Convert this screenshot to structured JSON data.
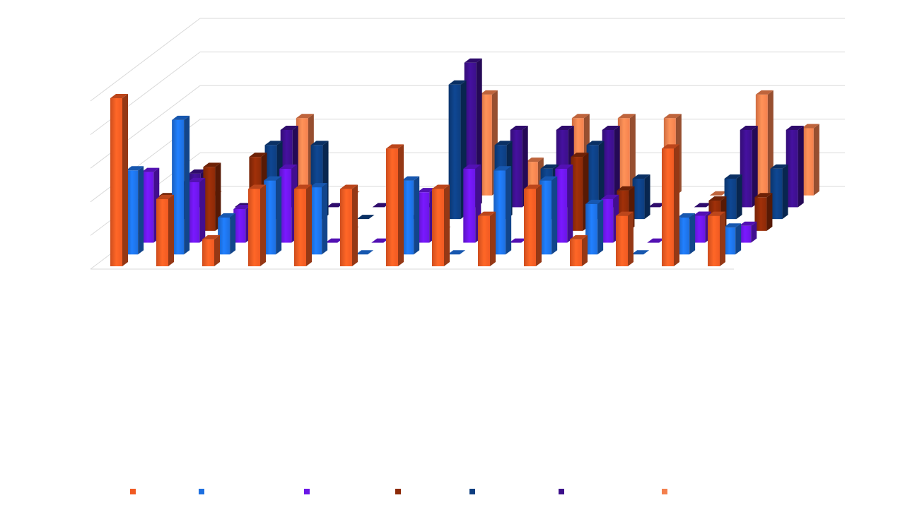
{
  "chart_data": {
    "type": "bar",
    "variant": "3d-clustered-column",
    "title": "",
    "xlabel": "",
    "ylabel": "",
    "categories": [
      "",
      "",
      "",
      "",
      "",
      "",
      "",
      "",
      "",
      "",
      "",
      "",
      "",
      ""
    ],
    "ylim": [
      0,
      5
    ],
    "grid": true,
    "legend": "bottom",
    "series": [
      {
        "color": "#f15a22",
        "values": [
          5.0,
          2.0,
          0.8,
          2.3,
          2.3,
          2.3,
          3.5,
          2.3,
          1.5,
          2.3,
          0.8,
          1.5,
          3.5,
          1.5
        ]
      },
      {
        "color": "#1d6fe0",
        "values": [
          2.5,
          4.0,
          1.1,
          2.2,
          2.0,
          0.0,
          2.2,
          0.0,
          2.5,
          2.2,
          1.5,
          0.0,
          1.1,
          0.8
        ]
      },
      {
        "color": "#6a16e6",
        "values": [
          2.1,
          1.8,
          1.0,
          2.2,
          0.0,
          0.0,
          1.5,
          2.2,
          0.0,
          2.2,
          1.3,
          0.0,
          0.8,
          0.5
        ]
      },
      {
        "color": "#8c2a08",
        "values": [
          1.0,
          1.9,
          2.2,
          0.0,
          0.0,
          0.0,
          0.0,
          0.0,
          0.0,
          2.2,
          1.2,
          0.0,
          0.9,
          1.0
        ]
      },
      {
        "color": "#0d3e80",
        "values": [
          1.0,
          0.0,
          2.2,
          2.2,
          0.0,
          0.0,
          4.0,
          2.2,
          1.5,
          2.2,
          1.2,
          0.0,
          1.2,
          1.5
        ]
      },
      {
        "color": "#3c0f8a",
        "values": [
          1.0,
          0.0,
          2.3,
          0.0,
          0.0,
          0.0,
          4.3,
          2.3,
          2.3,
          2.3,
          0.0,
          0.0,
          2.3,
          2.3
        ]
      },
      {
        "color": "#f4804d",
        "values": [
          0.0,
          0.0,
          2.3,
          0.0,
          0.0,
          0.0,
          3.0,
          1.0,
          2.3,
          2.3,
          2.3,
          0.0,
          3.0,
          2.0
        ]
      }
    ]
  }
}
